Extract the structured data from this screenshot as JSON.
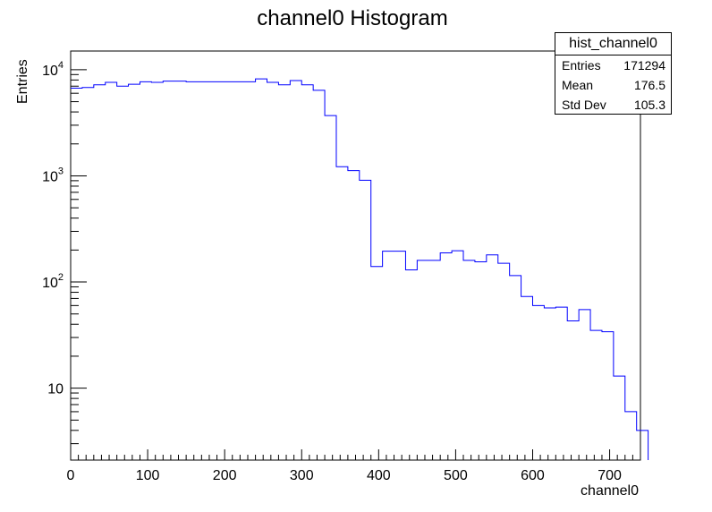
{
  "chart_data": {
    "type": "bar",
    "style": "step-histogram",
    "title": "channel0 Histogram",
    "xlabel": "channel0",
    "ylabel": "Entries",
    "xlim": [
      0,
      740
    ],
    "ylim": [
      2.1,
      15000
    ],
    "yscale": "log",
    "grid": false,
    "line_color": "#0000ff",
    "bin_width": 15,
    "bin_edges_start": 0,
    "values": [
      6700,
      6800,
      7200,
      7600,
      7000,
      7300,
      7700,
      7600,
      7800,
      7800,
      7700,
      7700,
      7700,
      7700,
      7700,
      7700,
      8200,
      7600,
      7200,
      7900,
      7200,
      6400,
      3700,
      1220,
      1120,
      910,
      140,
      195,
      195,
      130,
      160,
      160,
      188,
      197,
      160,
      155,
      180,
      150,
      115,
      73,
      60,
      57,
      58,
      43,
      55,
      35,
      34,
      13,
      6,
      4
    ],
    "x_ticks": [
      "0",
      "100",
      "200",
      "300",
      "400",
      "500",
      "600",
      "700"
    ],
    "x_tick_values": [
      0,
      100,
      200,
      300,
      400,
      500,
      600,
      700
    ],
    "y_ticks": [
      {
        "value": 10000,
        "base": "10",
        "exp": "4"
      },
      {
        "value": 1000,
        "base": "10",
        "exp": "3"
      },
      {
        "value": 100,
        "base": "10",
        "exp": "2"
      },
      {
        "value": 10,
        "base": "10",
        "exp": ""
      }
    ]
  },
  "stats": {
    "name": "hist_channel0",
    "rows": [
      {
        "label": "Entries",
        "value": "171294"
      },
      {
        "label": "Mean",
        "value": "176.5"
      },
      {
        "label": "Std Dev",
        "value": "105.3"
      }
    ]
  }
}
